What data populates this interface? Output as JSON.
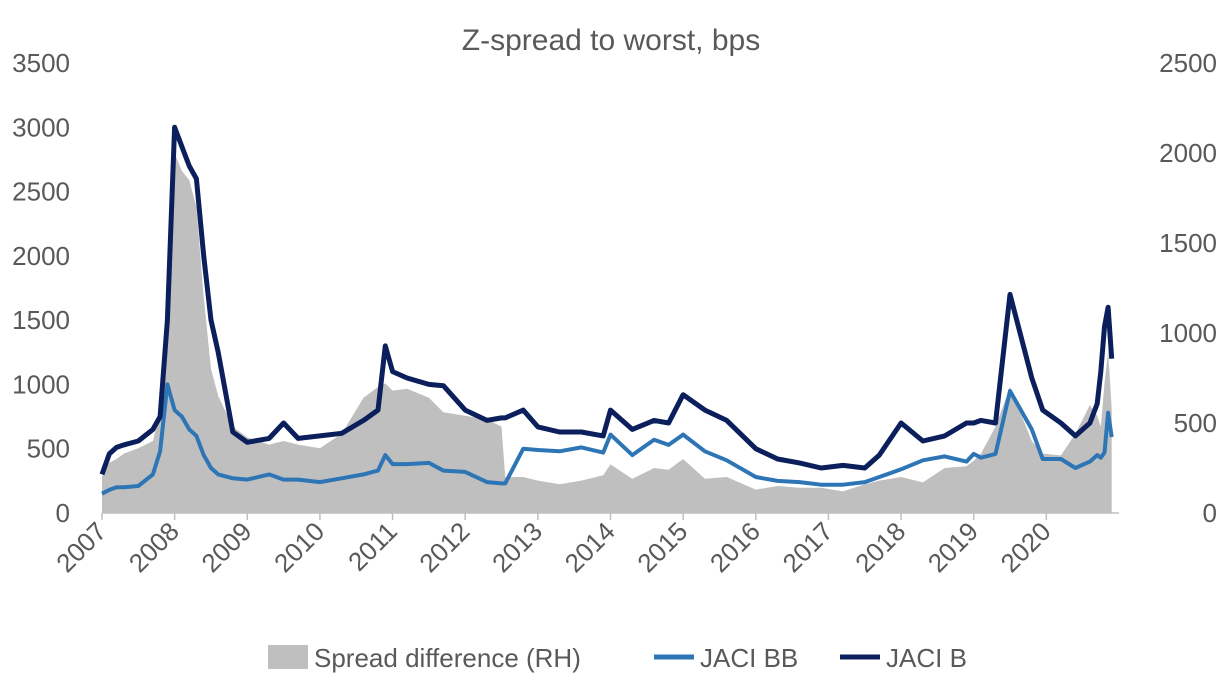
{
  "chart_data": {
    "type": "line",
    "title": "Z-spread to worst, bps",
    "xlabel": "",
    "ylabel": "",
    "y_left": {
      "min": 0,
      "max": 3500,
      "ticks": [
        "0",
        "500",
        "1000",
        "1500",
        "2000",
        "2500",
        "3000",
        "3500"
      ]
    },
    "y_right": {
      "min": 0,
      "max": 2500,
      "ticks": [
        "0",
        "500",
        "1000",
        "1500",
        "2000",
        "2500"
      ]
    },
    "x_ticks": [
      "2007",
      "2008",
      "2009",
      "2010",
      "2011",
      "2012",
      "2013",
      "2014",
      "2015",
      "2016",
      "2017",
      "2018",
      "2019",
      "2020"
    ],
    "x": [
      2007.0,
      2007.1,
      2007.2,
      2007.3,
      2007.5,
      2007.7,
      2007.8,
      2007.9,
      2008.0,
      2008.1,
      2008.2,
      2008.3,
      2008.4,
      2008.5,
      2008.6,
      2008.8,
      2009.0,
      2009.3,
      2009.5,
      2009.7,
      2010.0,
      2010.3,
      2010.6,
      2010.8,
      2010.9,
      2011.0,
      2011.2,
      2011.5,
      2011.7,
      2012.0,
      2012.3,
      2012.5,
      2012.55,
      2012.8,
      2013.0,
      2013.3,
      2013.6,
      2013.9,
      2014.0,
      2014.3,
      2014.6,
      2014.8,
      2015.0,
      2015.3,
      2015.6,
      2016.0,
      2016.3,
      2016.6,
      2016.9,
      2017.2,
      2017.5,
      2017.7,
      2018.0,
      2018.3,
      2018.6,
      2018.9,
      2019.0,
      2019.1,
      2019.3,
      2019.5,
      2019.8,
      2019.95,
      2020.2,
      2020.4,
      2020.6,
      2020.7,
      2020.75,
      2020.8,
      2020.85,
      2020.9
    ],
    "series": [
      {
        "name": "Spread difference (RH)",
        "axis": "right",
        "color": "#bfbfbf",
        "values": [
          200,
          280,
          300,
          330,
          360,
          400,
          560,
          1000,
          2000,
          1900,
          1850,
          1700,
          1200,
          800,
          650,
          480,
          420,
          380,
          400,
          380,
          360,
          440,
          640,
          700,
          720,
          680,
          690,
          640,
          560,
          540,
          520,
          480,
          200,
          200,
          180,
          160,
          180,
          210,
          270,
          190,
          250,
          240,
          300,
          190,
          200,
          130,
          150,
          140,
          140,
          120,
          160,
          180,
          200,
          170,
          250,
          260,
          290,
          330,
          480,
          700,
          400,
          330,
          320,
          440,
          600,
          540,
          480,
          720,
          900,
          580
        ]
      },
      {
        "name": "JACI BB",
        "axis": "left",
        "color": "#2e75b6",
        "values": [
          150,
          180,
          200,
          200,
          210,
          300,
          480,
          1000,
          800,
          750,
          650,
          600,
          450,
          350,
          300,
          270,
          260,
          300,
          260,
          260,
          240,
          270,
          300,
          330,
          450,
          380,
          380,
          390,
          330,
          320,
          240,
          230,
          230,
          500,
          490,
          480,
          510,
          470,
          610,
          450,
          570,
          530,
          610,
          480,
          410,
          280,
          250,
          240,
          220,
          220,
          240,
          280,
          340,
          410,
          440,
          400,
          460,
          430,
          460,
          950,
          650,
          420,
          420,
          350,
          400,
          450,
          430,
          470,
          780,
          590
        ]
      },
      {
        "name": "JACI B",
        "axis": "left",
        "color": "#0b1f5c",
        "values": [
          300,
          460,
          510,
          530,
          560,
          650,
          750,
          1500,
          3000,
          2850,
          2700,
          2600,
          2000,
          1500,
          1250,
          630,
          550,
          580,
          700,
          580,
          600,
          620,
          720,
          800,
          1300,
          1100,
          1050,
          1000,
          990,
          800,
          720,
          740,
          740,
          800,
          670,
          630,
          630,
          600,
          800,
          650,
          720,
          700,
          920,
          800,
          720,
          500,
          420,
          390,
          350,
          370,
          350,
          450,
          700,
          560,
          600,
          700,
          700,
          720,
          700,
          1700,
          1050,
          800,
          700,
          600,
          700,
          850,
          1100,
          1450,
          1600,
          1200
        ]
      }
    ],
    "legend": {
      "position": "bottom"
    }
  }
}
